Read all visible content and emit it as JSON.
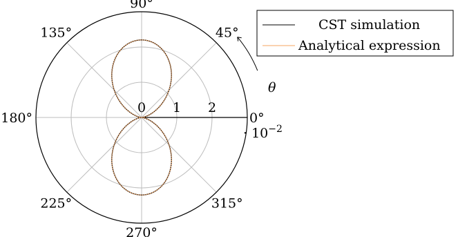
{
  "chart_data": {
    "type": "polar",
    "title": "",
    "radial_axis": {
      "range": [
        0,
        3
      ],
      "ticks": [
        0,
        1,
        2
      ],
      "tick_labels": [
        "0",
        "1",
        "2"
      ],
      "multiplier_label": "· 10",
      "multiplier_exponent": "−2"
    },
    "angular_axis": {
      "direction": "counterclockwise",
      "ticks_deg": [
        0,
        45,
        90,
        135,
        180,
        225,
        270,
        315
      ],
      "tick_labels": [
        "0°",
        "45°",
        "90°",
        "135°",
        "180°",
        "225°",
        "270°",
        "315°"
      ],
      "theta_label": "θ"
    },
    "grid": true,
    "legend": {
      "position": "top-right"
    },
    "series": [
      {
        "name": "CST simulation",
        "color": "#000000",
        "style": "line",
        "pattern": "sin^2",
        "peak": 0.022,
        "notes": "doughnut pattern with maxima at 90° and 270°, nulls at 0° and 180°"
      },
      {
        "name": "Analytical expression",
        "color": "#f4a460",
        "style": "line",
        "pattern": "sin^2",
        "peak": 0.022
      }
    ]
  }
}
